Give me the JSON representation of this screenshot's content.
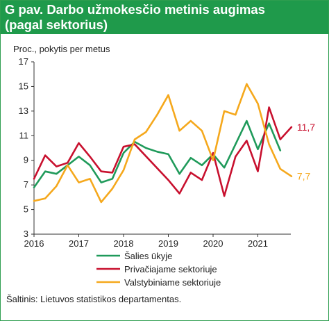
{
  "title_lines": [
    "G pav. Darbo užmokesčio metinis augimas",
    "(pagal sektorius)"
  ],
  "source": "Šaltinis: Lietuvos statistikos departamentas.",
  "chart_data": {
    "type": "line",
    "title": "G pav. Darbo užmokesčio metinis augimas (pagal sektorius)",
    "ylabel": "Proc., pokytis per metus",
    "xlabel": "",
    "ylim": [
      3,
      17
    ],
    "yticks": [
      3,
      5,
      7,
      9,
      11,
      13,
      15,
      17
    ],
    "xticks": [
      "2016",
      "2017",
      "2018",
      "2019",
      "2020",
      "2021"
    ],
    "x": [
      "2016 Q1",
      "2016 Q2",
      "2016 Q3",
      "2016 Q4",
      "2017 Q1",
      "2017 Q2",
      "2017 Q3",
      "2017 Q4",
      "2018 Q1",
      "2018 Q2",
      "2018 Q3",
      "2018 Q4",
      "2019 Q1",
      "2019 Q2",
      "2019 Q3",
      "2019 Q4",
      "2020 Q1",
      "2020 Q2",
      "2020 Q3",
      "2020 Q4",
      "2021 Q1",
      "2021 Q2",
      "2021 Q3",
      "2021 Q4"
    ],
    "grid": false,
    "legend_position": "bottom",
    "series": [
      {
        "name": "Šalies ūkyje",
        "color": "#1f9a5a",
        "values": [
          6.8,
          8.1,
          7.9,
          8.6,
          9.3,
          8.6,
          7.2,
          7.5,
          9.6,
          10.5,
          10.0,
          9.7,
          9.5,
          7.9,
          9.2,
          8.6,
          9.5,
          8.4,
          10.3,
          12.2,
          9.9,
          12.0,
          9.8,
          null
        ]
      },
      {
        "name": "Privačiajame sektoriuje",
        "color": "#c8102e",
        "values": [
          7.5,
          9.4,
          8.5,
          8.8,
          10.4,
          9.3,
          8.1,
          8.0,
          10.1,
          10.3,
          null,
          null,
          7.4,
          6.3,
          8.0,
          7.4,
          9.6,
          6.1,
          9.3,
          10.6,
          8.1,
          13.3,
          10.7,
          11.7
        ]
      },
      {
        "name": "Valstybiniame sektoriuje",
        "color": "#f5a81c",
        "values": [
          5.7,
          5.9,
          6.9,
          8.6,
          7.2,
          7.5,
          5.6,
          6.7,
          8.2,
          10.7,
          11.3,
          12.7,
          14.3,
          11.4,
          12.2,
          11.4,
          9.0,
          13.0,
          12.7,
          15.2,
          13.6,
          10.3,
          8.3,
          7.7
        ]
      }
    ],
    "end_labels": [
      {
        "series": "Privačiajame sektoriuje",
        "text": "11,7",
        "color": "#c8102e"
      },
      {
        "series": "Valstybiniame sektoriuje",
        "text": "7,7",
        "color": "#f5a81c"
      }
    ]
  }
}
